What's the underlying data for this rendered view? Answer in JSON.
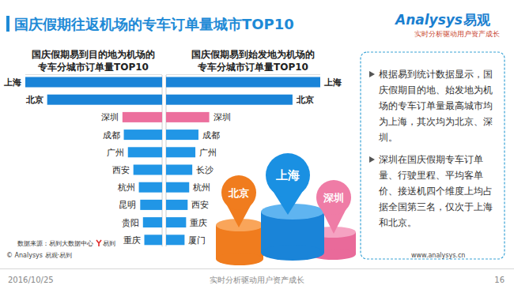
{
  "header": {
    "title": "国庆假期往返机场的专车订单量城市TOP10",
    "logo": {
      "name": "Analysys",
      "cn": "易观",
      "tagline": "实时分析驱动用户资产成长"
    }
  },
  "chart_data": [
    {
      "type": "bar",
      "orientation": "horizontal",
      "title": [
        "国庆假期易到目的地为机场的",
        "专车分城市订单量TOP10"
      ],
      "categories": [
        "上海",
        "北京",
        "深圳",
        "成都",
        "广州",
        "西安",
        "杭州",
        "昆明",
        "贵阳",
        "重庆"
      ],
      "values": [
        100,
        84,
        29,
        28,
        25,
        21,
        17,
        16,
        14,
        13
      ],
      "colors": [
        "#1a84d8",
        "#1a84d8",
        "#ec6f9d",
        "#2196e6",
        "#2196e6",
        "#2196e6",
        "#2196e6",
        "#2196e6",
        "#2196e6",
        "#2196e6"
      ],
      "xlim": [
        100,
        0
      ],
      "tick_labels": "y"
    },
    {
      "type": "bar",
      "orientation": "horizontal",
      "title": [
        "国庆假期易到始发地为机场的",
        "专车分城市订单量TOP10"
      ],
      "categories": [
        "上海",
        "北京",
        "深圳",
        "成都",
        "广州",
        "长沙",
        "杭州",
        "西安",
        "重庆",
        "厦门"
      ],
      "values": [
        100,
        82,
        28,
        21,
        19,
        17,
        15,
        14,
        13,
        12
      ],
      "colors": [
        "#1a84d8",
        "#1a84d8",
        "#ec6f9d",
        "#2196e6",
        "#2196e6",
        "#2196e6",
        "#2196e6",
        "#2196e6",
        "#2196e6",
        "#2196e6"
      ],
      "xlim": [
        0,
        100
      ],
      "tick_labels": "y"
    }
  ],
  "illustration": {
    "labels": [
      "北京",
      "上海",
      "深圳"
    ]
  },
  "notes": {
    "bullets": [
      "根据易到统计数据显示，国庆假期目的地、始发地为机场的专车订单量最高城市均为上海，其次均为北京、深圳。",
      "深圳在国庆假期专车订单量、行驶里程、平均客单价、接送机四个维度上均占据全国第三名，仅次于上海和北京。"
    ]
  },
  "footer": {
    "source": "数据来源：易到大数据中心",
    "source_logo": "易到",
    "copyright": "© Analysys 易观·易到",
    "website": "www.analysys.cn",
    "date": "2016/10/25",
    "tagline": "实时分析驱动用户资产成长",
    "page": "16"
  }
}
